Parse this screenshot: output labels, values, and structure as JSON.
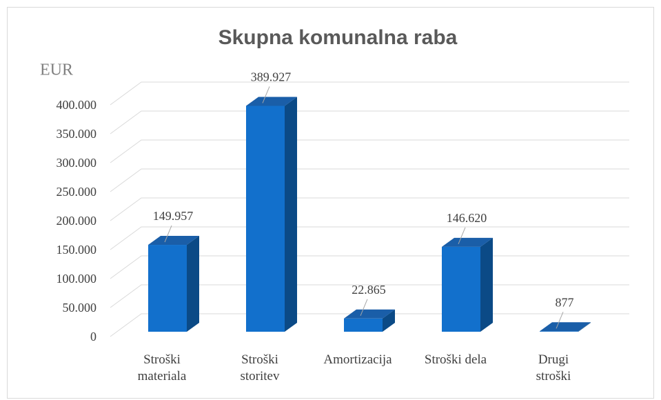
{
  "chart_data": {
    "type": "bar3d",
    "title": "Skupna komunalna raba",
    "y_axis_label": "EUR",
    "categories": [
      "Stroški\nmateriala",
      "Stroški\nstoritev",
      "Amortizacija",
      "Stroški dela",
      "Drugi\nstroški"
    ],
    "values": [
      149957,
      389927,
      22865,
      146620,
      877
    ],
    "value_labels": [
      "149.957",
      "389.927",
      "22.865",
      "146.620",
      "877"
    ],
    "color": "#1270cc",
    "ylim": [
      0,
      400000
    ],
    "yticks": [
      0,
      {
        "value": 50000,
        "label": "50.000"
      },
      {
        "value": 100000,
        "label": "100.000"
      },
      {
        "value": 150000,
        "label": "150.000"
      },
      {
        "value": 200000,
        "label": "200.000"
      },
      {
        "value": 250000,
        "label": "250.000"
      },
      {
        "value": 300000,
        "label": "300.000"
      },
      {
        "value": 350000,
        "label": "350.000"
      },
      {
        "value": 400000,
        "label": "400.000"
      }
    ],
    "grid": true
  }
}
